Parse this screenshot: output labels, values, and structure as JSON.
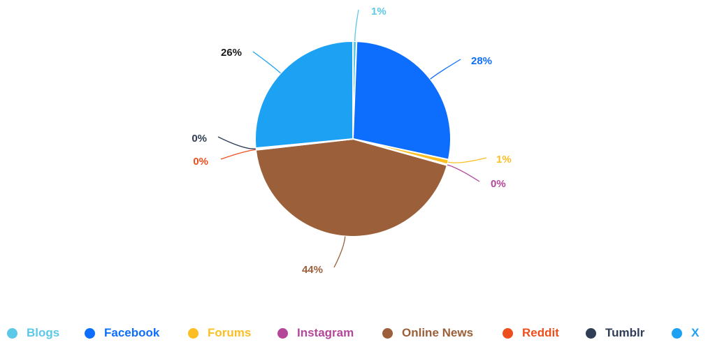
{
  "chart_data": {
    "type": "pie",
    "title": "",
    "slices": [
      {
        "name": "Blogs",
        "value": 0.6,
        "label": "1%",
        "color": "#5bc8e8"
      },
      {
        "name": "Facebook",
        "value": 27.8,
        "label": "28%",
        "color": "#0d6efd"
      },
      {
        "name": "Forums",
        "value": 0.8,
        "label": "1%",
        "color": "#fbbf24"
      },
      {
        "name": "Instagram",
        "value": 0.15,
        "label": "0%",
        "color": "#b5479a"
      },
      {
        "name": "Online News",
        "value": 43.85,
        "label": "44%",
        "color": "#9b5f3a"
      },
      {
        "name": "Reddit",
        "value": 0.1,
        "label": "0%",
        "color": "#ec4f1c"
      },
      {
        "name": "Tumblr",
        "value": 0.2,
        "label": "0%",
        "color": "#2f3e56"
      },
      {
        "name": "X",
        "value": 26.5,
        "label": "26%",
        "color": "#1da1f2"
      }
    ],
    "legend": {
      "placement": "bottom",
      "items": [
        "Blogs",
        "Facebook",
        "Forums",
        "Instagram",
        "Online News",
        "Reddit",
        "Tumblr",
        "X"
      ]
    }
  }
}
